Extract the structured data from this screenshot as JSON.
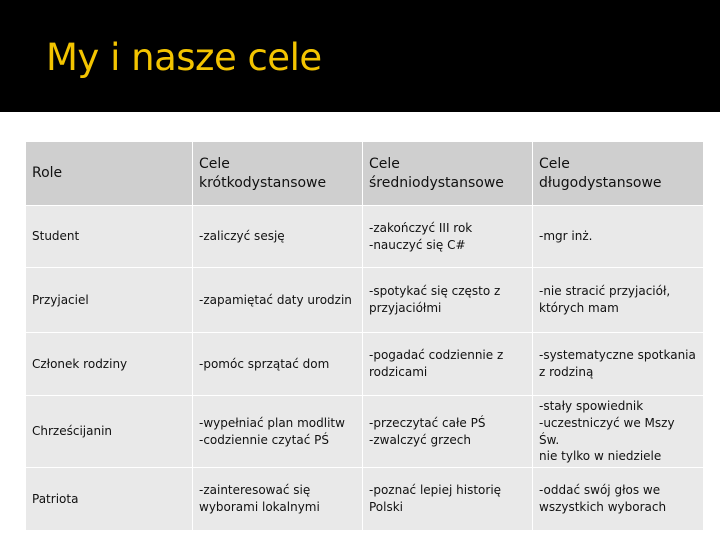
{
  "slide": {
    "title": "My i nasze cele"
  },
  "colors": {
    "title": "#f3c400",
    "background": "#000000",
    "header_fill": "#cfcfcf",
    "body_fill": "#e9e9e9"
  },
  "table": {
    "headers": [
      "Role",
      "Cele\nkrótkodystansowe",
      "Cele\nśredniodystansowe",
      "Cele\ndługodystansowe"
    ],
    "rows": [
      [
        "Student",
        "-zaliczyć sesję",
        "-zakończyć III rok\n-nauczyć się C#",
        "-mgr inż."
      ],
      [
        "Przyjaciel",
        "-zapamiętać daty urodzin",
        "-spotykać się często z\nprzyjaciółmi",
        "-nie stracić przyjaciół,\nktórych mam"
      ],
      [
        "Członek rodziny",
        "-pomóc sprzątać dom",
        "-pogadać codziennie z\nrodzicami",
        "-systematyczne spotkania\nz rodziną"
      ],
      [
        "Chrześcijanin",
        "-wypełniać plan modlitw\n-codziennie czytać PŚ",
        "-przeczytać całe PŚ\n-zwalczyć grzech",
        "-stały spowiednik\n-uczestniczyć we Mszy Św.\nnie tylko w niedziele"
      ],
      [
        "Patriota",
        "-zainteresować się\nwyborami lokalnymi",
        "-poznać lepiej historię\nPolski",
        "-oddać swój głos we\nwszystkich wyborach"
      ]
    ]
  }
}
